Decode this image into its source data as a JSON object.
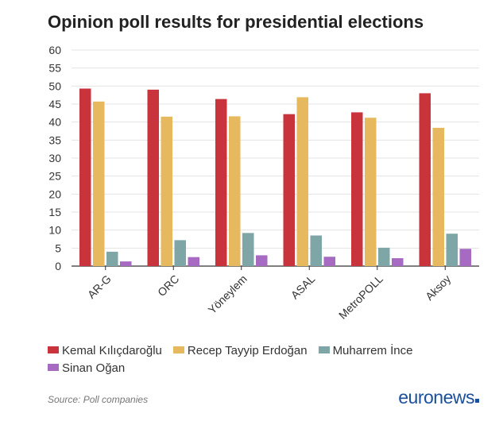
{
  "chart_data": {
    "type": "bar",
    "title": "Opinion poll results for presidential elections",
    "categories": [
      "AR-G",
      "ORC",
      "Yöneylem",
      "ASAL",
      "MetroPOLL",
      "Aksoy"
    ],
    "series": [
      {
        "name": "Kemal Kılıçdaroğlu",
        "color": "#c9333c",
        "values": [
          49.3,
          49.0,
          46.4,
          42.2,
          42.7,
          48.0
        ]
      },
      {
        "name": "Recep Tayyip Erdoğan",
        "color": "#e6b95e",
        "values": [
          45.7,
          41.5,
          41.6,
          46.9,
          41.2,
          38.4
        ]
      },
      {
        "name": "Muharrem İnce",
        "color": "#7fa6a7",
        "values": [
          4.0,
          7.2,
          9.2,
          8.5,
          5.1,
          9.0
        ]
      },
      {
        "name": "Sinan Oğan",
        "color": "#a66ac2",
        "values": [
          1.3,
          2.5,
          3.0,
          2.6,
          2.2,
          4.8
        ]
      }
    ],
    "yticks": [
      0,
      5,
      10,
      15,
      20,
      25,
      30,
      35,
      40,
      45,
      50,
      55,
      60
    ],
    "ylim": [
      0,
      60
    ],
    "grid": true,
    "legend": "bottom",
    "xlabel": "",
    "ylabel": ""
  },
  "footer": {
    "source": "Source: Poll companies",
    "logo": "euronews"
  },
  "colors": {
    "grid": "#e3e3e3",
    "axis": "#333333",
    "text": "#333333"
  }
}
